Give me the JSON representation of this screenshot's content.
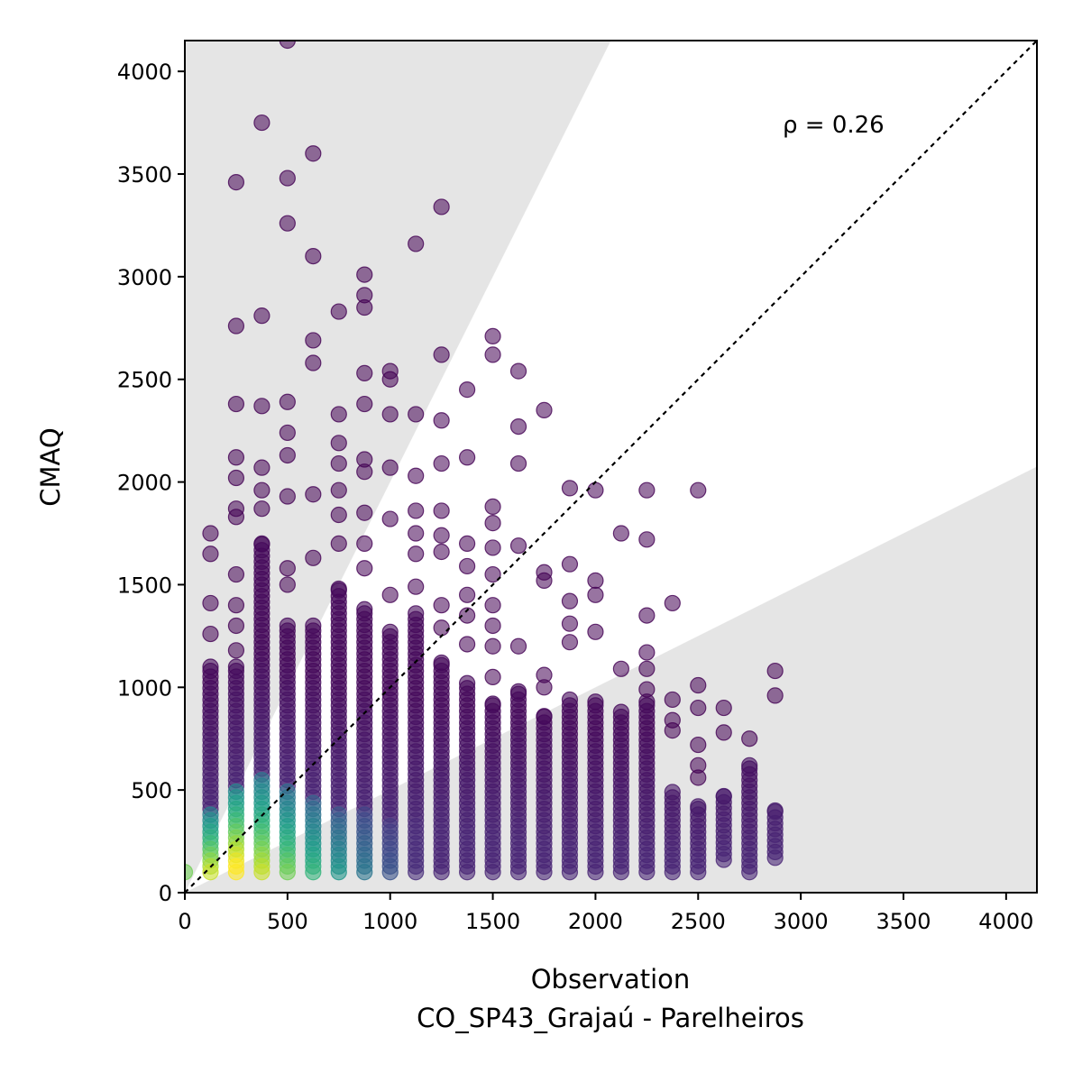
{
  "chart_data": {
    "type": "scatter",
    "xlabel": "Observation",
    "xlabel_sub": "CO_SP43_Grajaú - Parelheiros",
    "ylabel": "CMAQ",
    "xlim": [
      0,
      4150
    ],
    "ylim": [
      0,
      4150
    ],
    "x_ticks": [
      0,
      500,
      1000,
      1500,
      2000,
      2500,
      3000,
      3500,
      4000
    ],
    "y_ticks": [
      0,
      500,
      1000,
      1500,
      2000,
      2500,
      3000,
      3500,
      4000
    ],
    "annotation": "ρ = 0.26",
    "identity_line": true,
    "shaded_region_slopes": [
      0.5,
      2
    ],
    "grid": false,
    "colormap": "viridis (point density)",
    "colors": {
      "shade": "#e5e5e5",
      "low_density": "#440154",
      "high_density": "#fde725"
    },
    "columns": [
      {
        "x": 0,
        "lo": 100,
        "hi": 100,
        "dense_hi": 100,
        "outliers": []
      },
      {
        "x": 125,
        "lo": 100,
        "hi": 1100,
        "dense_hi": 400,
        "outliers": [
          1260,
          1410,
          1650,
          1750
        ]
      },
      {
        "x": 250,
        "lo": 100,
        "hi": 1100,
        "dense_hi": 500,
        "outliers": [
          1180,
          1300,
          1400,
          1550,
          1830,
          1870,
          2020,
          2120,
          2380,
          2760,
          3460
        ]
      },
      {
        "x": 375,
        "lo": 100,
        "hi": 1700,
        "dense_hi": 550,
        "outliers": [
          1870,
          1960,
          2070,
          2370,
          2810,
          3750
        ]
      },
      {
        "x": 500,
        "lo": 100,
        "hi": 1300,
        "dense_hi": 500,
        "outliers": [
          1500,
          1580,
          1930,
          2130,
          2240,
          2390,
          3260,
          3480,
          4150
        ]
      },
      {
        "x": 625,
        "lo": 100,
        "hi": 1300,
        "dense_hi": 450,
        "outliers": [
          1630,
          1940,
          2580,
          2690,
          3100,
          3600
        ]
      },
      {
        "x": 750,
        "lo": 100,
        "hi": 1480,
        "dense_hi": 400,
        "outliers": [
          1700,
          1840,
          1960,
          2090,
          2190,
          2330,
          2830
        ]
      },
      {
        "x": 875,
        "lo": 100,
        "hi": 1380,
        "dense_hi": 380,
        "outliers": [
          1580,
          1700,
          1850,
          2050,
          2110,
          2380,
          2530,
          2850,
          2910,
          3010
        ]
      },
      {
        "x": 1000,
        "lo": 100,
        "hi": 1270,
        "dense_hi": 350,
        "outliers": [
          1450,
          1820,
          2070,
          2330,
          2500,
          2540
        ]
      },
      {
        "x": 1125,
        "lo": 100,
        "hi": 1360,
        "dense_hi": 330,
        "outliers": [
          1490,
          1650,
          1750,
          1860,
          2030,
          2330,
          3160
        ]
      },
      {
        "x": 1250,
        "lo": 100,
        "hi": 1120,
        "dense_hi": 300,
        "outliers": [
          1290,
          1400,
          1660,
          1740,
          1860,
          2090,
          2300,
          2620,
          3340
        ]
      },
      {
        "x": 1375,
        "lo": 100,
        "hi": 1020,
        "dense_hi": 280,
        "outliers": [
          1210,
          1350,
          1450,
          1590,
          1700,
          2120,
          2450
        ]
      },
      {
        "x": 1500,
        "lo": 100,
        "hi": 920,
        "dense_hi": 260,
        "outliers": [
          1050,
          1200,
          1300,
          1400,
          1550,
          1680,
          1800,
          1880,
          2620,
          2710
        ]
      },
      {
        "x": 1625,
        "lo": 100,
        "hi": 980,
        "dense_hi": 240,
        "outliers": [
          1200,
          1690,
          2090,
          2270,
          2540
        ]
      },
      {
        "x": 1750,
        "lo": 100,
        "hi": 860,
        "dense_hi": 220,
        "outliers": [
          1000,
          1060,
          1520,
          1560,
          2350
        ]
      },
      {
        "x": 1875,
        "lo": 100,
        "hi": 940,
        "dense_hi": 200,
        "outliers": [
          1220,
          1310,
          1420,
          1600,
          1970
        ]
      },
      {
        "x": 2000,
        "lo": 100,
        "hi": 930,
        "dense_hi": 190,
        "outliers": [
          1270,
          1450,
          1520,
          1960
        ]
      },
      {
        "x": 2125,
        "lo": 100,
        "hi": 880,
        "dense_hi": 180,
        "outliers": [
          1090,
          1750
        ]
      },
      {
        "x": 2250,
        "lo": 100,
        "hi": 930,
        "dense_hi": 170,
        "outliers": [
          990,
          1090,
          1170,
          1350,
          1720,
          1960
        ]
      },
      {
        "x": 2375,
        "lo": 100,
        "hi": 490,
        "dense_hi": 150,
        "outliers": [
          790,
          840,
          940,
          1410
        ]
      },
      {
        "x": 2500,
        "lo": 100,
        "hi": 420,
        "dense_hi": 140,
        "outliers": [
          560,
          620,
          720,
          900,
          1010,
          1960
        ]
      },
      {
        "x": 2625,
        "lo": 160,
        "hi": 470,
        "dense_hi": 200,
        "outliers": [
          780,
          900
        ]
      },
      {
        "x": 2750,
        "lo": 100,
        "hi": 620,
        "dense_hi": 150,
        "outliers": [
          750
        ]
      },
      {
        "x": 2875,
        "lo": 170,
        "hi": 400,
        "dense_hi": 230,
        "outliers": [
          960,
          1080
        ]
      }
    ]
  }
}
